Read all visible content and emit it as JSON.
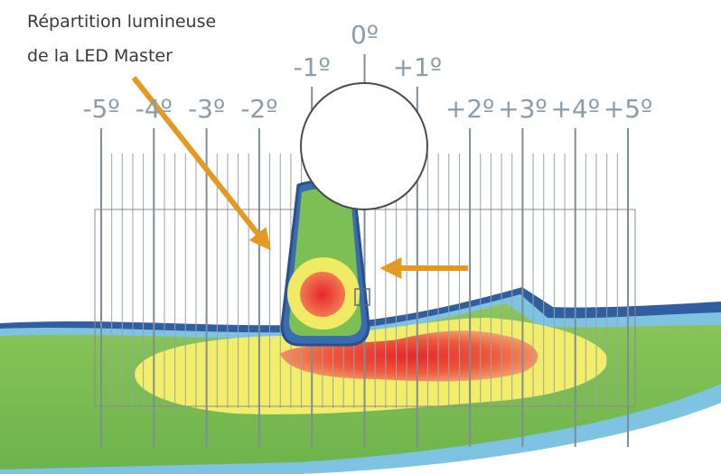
{
  "annotation": {
    "lines": [
      "Répartition lumineuse",
      "de la LED Master"
    ]
  },
  "scale": {
    "labels": [
      "-5º",
      "-4º",
      "-3º",
      "-2º",
      "-1º",
      "0º",
      "+1º",
      "+2º",
      "+3º",
      "+4º",
      "+5º"
    ]
  }
}
